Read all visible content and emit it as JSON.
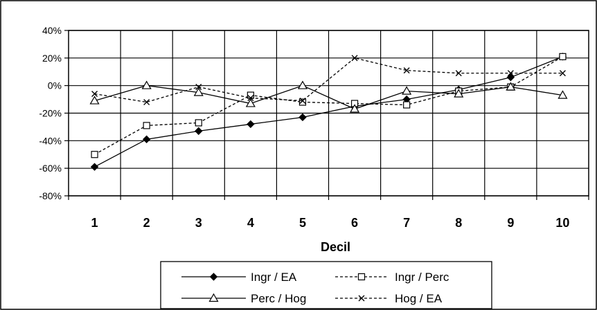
{
  "chart_data": {
    "type": "line",
    "title": "",
    "xlabel": "Decil",
    "ylabel": "",
    "categories": [
      "1",
      "2",
      "3",
      "4",
      "5",
      "6",
      "7",
      "8",
      "9",
      "10"
    ],
    "ylim": [
      -80,
      40
    ],
    "yticks": [
      -80,
      -60,
      -40,
      -20,
      0,
      20,
      40
    ],
    "ytick_labels": [
      "-80%",
      "-60%",
      "-40%",
      "-20%",
      "0%",
      "20%",
      "40%"
    ],
    "grid": true,
    "legend_position": "bottom",
    "series": [
      {
        "name": "Ingr / EA",
        "values": [
          -59,
          -39,
          -33,
          -28,
          -23,
          -15,
          -10,
          -3,
          6,
          21
        ],
        "marker": "diamond-filled",
        "dash": "solid"
      },
      {
        "name": "Ingr / Perc",
        "values": [
          -50,
          -29,
          -27,
          -7,
          -12,
          -13,
          -14,
          -4,
          -1,
          21
        ],
        "marker": "square-open",
        "dash": "dashed"
      },
      {
        "name": "Perc / Hog",
        "values": [
          -11,
          0,
          -5,
          -13,
          0,
          -17,
          -4,
          -6,
          -1,
          -7
        ],
        "marker": "triangle-open",
        "dash": "solid"
      },
      {
        "name": "Hog / EA",
        "values": [
          -6,
          -12,
          -1,
          -9,
          -11,
          20,
          11,
          9,
          9,
          9
        ],
        "marker": "x",
        "dash": "dashed"
      }
    ]
  }
}
